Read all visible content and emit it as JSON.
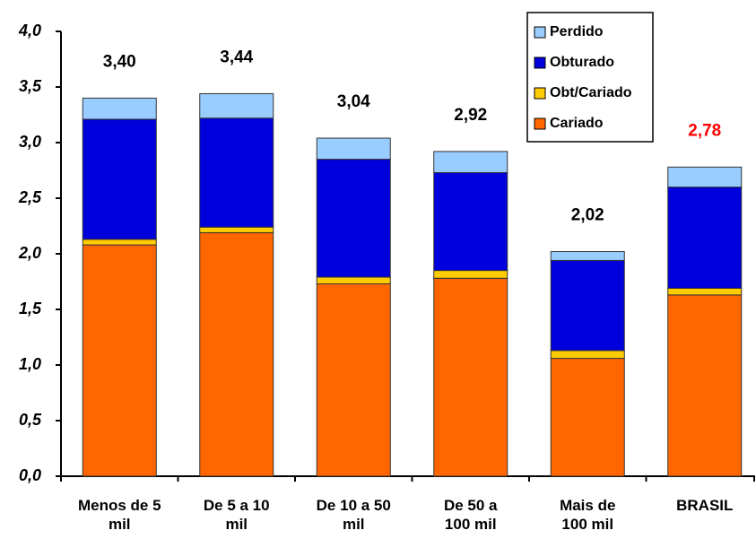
{
  "chart_data": {
    "type": "stacked_bar",
    "categories": [
      "Menos de 5\nmil",
      "De 5 a 10\nmil",
      "De 10 a 50\nmil",
      "De 50 a\n100 mil",
      "Mais de\n100 mil",
      "BRASIL"
    ],
    "series": [
      {
        "name": "Cariado",
        "color": "#ff6600",
        "values": [
          2.08,
          2.19,
          1.73,
          1.78,
          1.06,
          1.63
        ]
      },
      {
        "name": "Obt/Cariado",
        "color": "#ffcc00",
        "values": [
          0.05,
          0.05,
          0.06,
          0.07,
          0.07,
          0.06
        ]
      },
      {
        "name": "Obturado",
        "color": "#0000dd",
        "values": [
          1.08,
          0.98,
          1.06,
          0.88,
          0.81,
          0.91
        ]
      },
      {
        "name": "Perdido",
        "color": "#99ccff",
        "values": [
          0.19,
          0.22,
          0.19,
          0.19,
          0.08,
          0.18
        ]
      }
    ],
    "totals": [
      3.4,
      3.44,
      3.04,
      2.92,
      2.02,
      2.78
    ],
    "total_labels": [
      "3,40",
      "3,44",
      "3,04",
      "2,92",
      "2,02",
      "2,78"
    ],
    "total_label_colors": [
      "#000000",
      "#000000",
      "#000000",
      "#000000",
      "#000000",
      "#ff0000"
    ],
    "ylim": [
      0,
      4
    ],
    "yticks": [
      {
        "value": 0,
        "label": "0,0"
      },
      {
        "value": 0.5,
        "label": "0,5"
      },
      {
        "value": 1,
        "label": "1,0"
      },
      {
        "value": 1.5,
        "label": "1,5"
      },
      {
        "value": 2,
        "label": "2,0"
      },
      {
        "value": 2.5,
        "label": "2,5"
      },
      {
        "value": 3,
        "label": "3,0"
      },
      {
        "value": 3.5,
        "label": "3,5"
      },
      {
        "value": 4,
        "label": "4,0"
      }
    ],
    "legend": "top-right"
  }
}
